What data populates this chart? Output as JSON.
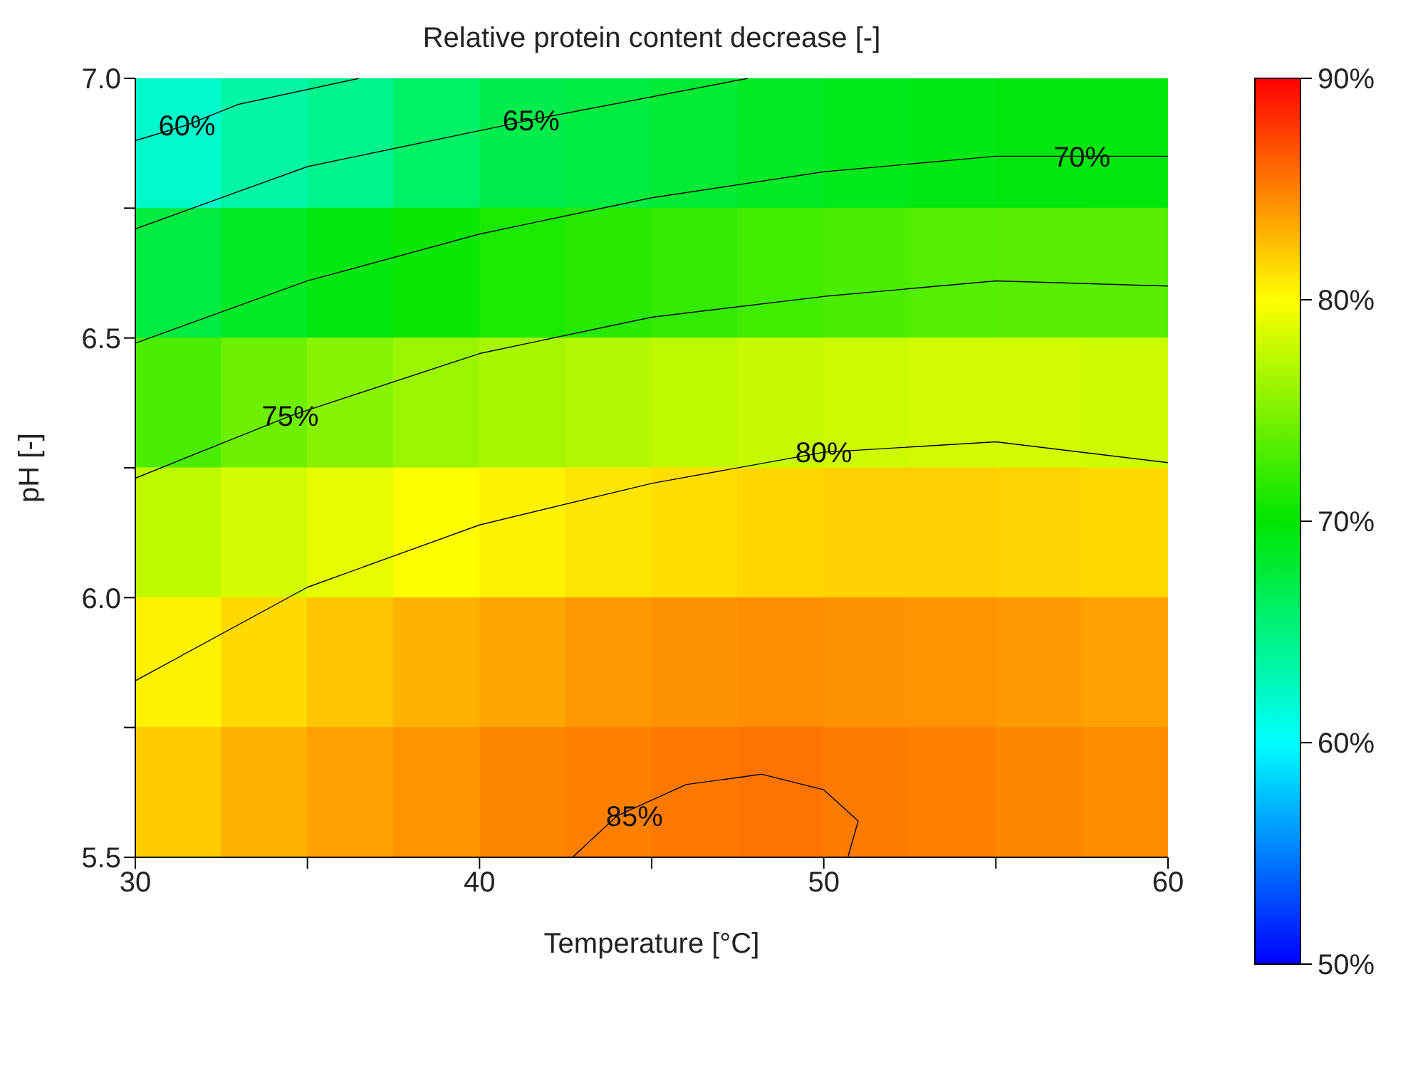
{
  "chart_data": {
    "type": "heatmap",
    "title": "Relative protein content decrease [-]",
    "xlabel": "Temperature [°C]",
    "ylabel": "pH [-]",
    "xlim": [
      30,
      60
    ],
    "xticks": [
      30,
      {
        "value": 35,
        "label": null
      },
      40,
      {
        "value": 45,
        "label": null
      },
      50,
      {
        "value": 55,
        "label": null
      },
      60
    ],
    "ylim": [
      5.5,
      7.0
    ],
    "yticks": [
      {
        "value": 5.5,
        "label": "5.5"
      },
      {
        "value": 5.75,
        "label": null
      },
      {
        "value": 6.0,
        "label": "6.0"
      },
      {
        "value": 6.25,
        "label": null
      },
      {
        "value": 6.5,
        "label": "6.5"
      },
      {
        "value": 6.75,
        "label": null
      },
      {
        "value": 7.0,
        "label": "7.0"
      }
    ],
    "cells": [
      [
        62,
        63.5,
        64.5,
        66,
        67,
        67.5,
        68,
        68.5,
        69,
        69.3,
        69.5,
        69.6
      ],
      [
        67.5,
        68.5,
        69.5,
        70.3,
        71,
        71.5,
        72,
        72.5,
        73,
        73.3,
        73.5,
        73.5
      ],
      [
        73,
        74.3,
        75.3,
        76,
        76.5,
        77,
        77.5,
        77.8,
        78,
        78.2,
        78.2,
        78
      ],
      [
        77.5,
        78.3,
        79,
        80,
        80.5,
        81,
        81.3,
        81.6,
        81.8,
        81.8,
        81.7,
        81.5
      ],
      [
        80.5,
        81.5,
        82.3,
        83,
        83.5,
        84,
        84.3,
        84.4,
        84.3,
        84.2,
        84,
        83.7
      ],
      [
        82,
        83,
        83.7,
        84.2,
        84.7,
        85,
        85.3,
        85.5,
        85.2,
        85,
        84.7,
        84.5
      ]
    ],
    "clim": [
      50,
      90
    ],
    "cticks": [
      {
        "value": 50,
        "label": "50%"
      },
      {
        "value": 60,
        "label": "60%"
      },
      {
        "value": 70,
        "label": "70%"
      },
      {
        "value": 80,
        "label": "80%"
      },
      {
        "value": 90,
        "label": "90%"
      }
    ],
    "series": [
      {
        "type": "line",
        "color": "#000000",
        "x": [
          30,
          31.5,
          33,
          36.5
        ],
        "values": [
          6.88,
          6.91,
          6.95,
          7.0
        ]
      },
      {
        "type": "line",
        "color": "#000000",
        "x": [
          30,
          35,
          41.5,
          47.8
        ],
        "values": [
          6.71,
          6.83,
          6.92,
          7.0
        ]
      },
      {
        "type": "line",
        "color": "#000000",
        "x": [
          30,
          35,
          40,
          45,
          50,
          55,
          57.5,
          60
        ],
        "values": [
          6.49,
          6.61,
          6.7,
          6.77,
          6.82,
          6.85,
          6.85,
          6.85
        ]
      },
      {
        "type": "line",
        "color": "#000000",
        "x": [
          30,
          34.5,
          40,
          45,
          50,
          55,
          60
        ],
        "values": [
          6.23,
          6.35,
          6.47,
          6.54,
          6.58,
          6.61,
          6.6
        ]
      },
      {
        "type": "line",
        "color": "#000000",
        "x": [
          30,
          35,
          40,
          45,
          50,
          55,
          60
        ],
        "values": [
          5.84,
          6.02,
          6.14,
          6.22,
          6.28,
          6.3,
          6.26
        ]
      },
      {
        "type": "line",
        "color": "#000000",
        "x": [
          42.7,
          44,
          46,
          48.2,
          50,
          51,
          50.7
        ],
        "values": [
          5.5,
          5.58,
          5.64,
          5.66,
          5.63,
          5.57,
          5.5
        ]
      }
    ],
    "annotations": [
      {
        "text": "60%",
        "x": 31.5,
        "y": 6.91
      },
      {
        "text": "65%",
        "x": 41.5,
        "y": 6.92
      },
      {
        "text": "70%",
        "x": 57.5,
        "y": 6.85
      },
      {
        "text": "75%",
        "x": 34.5,
        "y": 6.35
      },
      {
        "text": "80%",
        "x": 50,
        "y": 6.28
      },
      {
        "text": "85%",
        "x": 44.5,
        "y": 5.58
      }
    ]
  }
}
